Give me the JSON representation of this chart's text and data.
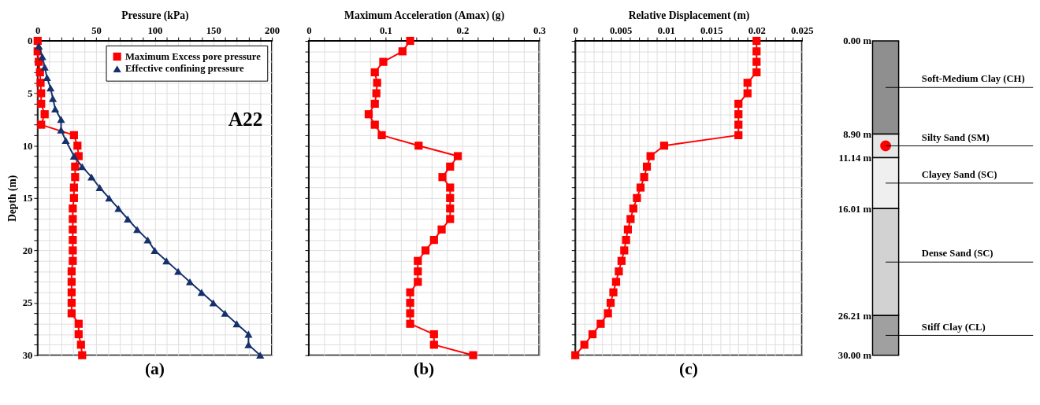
{
  "chart_data": [
    {
      "type": "line",
      "xlabel": "Pressure (kPa)",
      "ylabel": "Depth (m)",
      "xlim": [
        0,
        200
      ],
      "ylim": [
        30,
        0
      ],
      "xticks": [
        0,
        {
          "value": 10,
          "label": null
        },
        {
          "value": 20,
          "label": null
        },
        {
          "value": 30,
          "label": null
        },
        {
          "value": 40,
          "label": null
        },
        50,
        {
          "value": 60,
          "label": null
        },
        {
          "value": 70,
          "label": null
        },
        {
          "value": 80,
          "label": null
        },
        {
          "value": 90,
          "label": null
        },
        100,
        {
          "value": 110,
          "label": null
        },
        {
          "value": 120,
          "label": null
        },
        {
          "value": 130,
          "label": null
        },
        {
          "value": 140,
          "label": null
        },
        150,
        {
          "value": 160,
          "label": null
        },
        {
          "value": 170,
          "label": null
        },
        {
          "value": 180,
          "label": null
        },
        {
          "value": 190,
          "label": null
        },
        200
      ],
      "yticks": [
        0,
        {
          "value": 1,
          "label": null
        },
        {
          "value": 2,
          "label": null
        },
        {
          "value": 3,
          "label": null
        },
        {
          "value": 4,
          "label": null
        },
        5,
        {
          "value": 6,
          "label": null
        },
        {
          "value": 7,
          "label": null
        },
        {
          "value": 8,
          "label": null
        },
        {
          "value": 9,
          "label": null
        },
        10,
        {
          "value": 11,
          "label": null
        },
        {
          "value": 12,
          "label": null
        },
        {
          "value": 13,
          "label": null
        },
        {
          "value": 14,
          "label": null
        },
        15,
        {
          "value": 16,
          "label": null
        },
        {
          "value": 17,
          "label": null
        },
        {
          "value": 18,
          "label": null
        },
        {
          "value": 19,
          "label": null
        },
        20,
        {
          "value": 21,
          "label": null
        },
        {
          "value": 22,
          "label": null
        },
        {
          "value": 23,
          "label": null
        },
        {
          "value": 24,
          "label": null
        },
        25,
        {
          "value": 26,
          "label": null
        },
        {
          "value": 27,
          "label": null
        },
        {
          "value": 28,
          "label": null
        },
        {
          "value": 29,
          "label": null
        },
        30
      ],
      "grid": true,
      "legend": "top right",
      "annotations": [
        "A22",
        "(a)"
      ],
      "series": [
        {
          "name": "Maximum Excess pore pressure",
          "color": "#ff0000",
          "marker": "square",
          "x": [
            0,
            0,
            1,
            2,
            2.5,
            3,
            3,
            6,
            3,
            31,
            34,
            35,
            32,
            32,
            31,
            31,
            30,
            30,
            30,
            30,
            30,
            30,
            29,
            29,
            29,
            29,
            29,
            35,
            35,
            37,
            38
          ],
          "values": [
            0,
            1,
            2,
            3,
            4,
            5,
            6,
            7,
            8,
            9,
            10,
            11,
            12,
            13,
            14,
            15,
            16,
            17,
            18,
            19,
            20,
            21,
            22,
            23,
            24,
            25,
            26,
            27,
            28,
            29,
            30
          ]
        },
        {
          "name": "Effective confining pressure",
          "color": "#15306b",
          "marker": "triangle",
          "x": [
            1,
            4,
            6,
            8,
            11,
            13,
            15,
            20,
            20,
            24,
            31,
            38,
            46,
            53,
            61,
            69,
            77,
            85,
            94,
            100,
            110,
            120,
            130,
            140,
            150,
            160,
            170,
            180,
            180,
            190
          ],
          "values": [
            0.5,
            1.5,
            2.5,
            3.5,
            4.5,
            5.5,
            6.5,
            7.5,
            8.5,
            9.5,
            11,
            12,
            13,
            14,
            15,
            16,
            17,
            18,
            19,
            20,
            21,
            22,
            23,
            24,
            25,
            26,
            27,
            28,
            29,
            30
          ]
        }
      ]
    },
    {
      "type": "line",
      "xlabel": "Maximum Acceleration (Amax) (g)",
      "xlim": [
        0,
        0.3
      ],
      "ylim": [
        30,
        0
      ],
      "tick_labels": "x",
      "xticks": [
        0,
        {
          "value": 0.02,
          "label": null
        },
        {
          "value": 0.04,
          "label": null
        },
        {
          "value": 0.06,
          "label": null
        },
        {
          "value": 0.08,
          "label": null
        },
        0.1,
        {
          "value": 0.12,
          "label": null
        },
        {
          "value": 0.14,
          "label": null
        },
        {
          "value": 0.16,
          "label": null
        },
        {
          "value": 0.18,
          "label": null
        },
        0.2,
        {
          "value": 0.22,
          "label": null
        },
        {
          "value": 0.24,
          "label": null
        },
        {
          "value": 0.26,
          "label": null
        },
        {
          "value": 0.28,
          "label": null
        },
        0.3
      ],
      "yticks": [
        0,
        {
          "value": 1,
          "label": null
        },
        {
          "value": 2,
          "label": null
        },
        {
          "value": 3,
          "label": null
        },
        {
          "value": 4,
          "label": null
        },
        5,
        {
          "value": 6,
          "label": null
        },
        {
          "value": 7,
          "label": null
        },
        {
          "value": 8,
          "label": null
        },
        {
          "value": 9,
          "label": null
        },
        10,
        {
          "value": 11,
          "label": null
        },
        {
          "value": 12,
          "label": null
        },
        {
          "value": 13,
          "label": null
        },
        {
          "value": 14,
          "label": null
        },
        15,
        {
          "value": 16,
          "label": null
        },
        {
          "value": 17,
          "label": null
        },
        {
          "value": 18,
          "label": null
        },
        {
          "value": 19,
          "label": null
        },
        20,
        {
          "value": 21,
          "label": null
        },
        {
          "value": 22,
          "label": null
        },
        {
          "value": 23,
          "label": null
        },
        {
          "value": 24,
          "label": null
        },
        25,
        {
          "value": 26,
          "label": null
        },
        {
          "value": 27,
          "label": null
        },
        {
          "value": 28,
          "label": null
        },
        {
          "value": 29,
          "label": null
        },
        30
      ],
      "grid": true,
      "annotations": [
        "(b)"
      ],
      "series": [
        {
          "color": "#ff0000",
          "marker": "square",
          "x": [
            0.132,
            0.122,
            0.097,
            0.086,
            0.089,
            0.088,
            0.086,
            0.078,
            0.086,
            0.095,
            0.143,
            0.194,
            0.184,
            0.174,
            0.184,
            0.184,
            0.184,
            0.184,
            0.173,
            0.163,
            0.152,
            0.142,
            0.142,
            0.142,
            0.132,
            0.132,
            0.132,
            0.132,
            0.163,
            0.163,
            0.214
          ],
          "values": [
            0,
            1,
            2,
            3,
            4,
            5,
            6,
            7,
            8,
            9,
            10,
            11,
            12,
            13,
            14,
            15,
            16,
            17,
            18,
            19,
            20,
            21,
            22,
            23,
            24,
            25,
            26,
            27,
            28,
            29,
            30
          ]
        }
      ]
    },
    {
      "type": "line",
      "xlabel": "Relative Displacement (m)",
      "xlim": [
        0,
        0.025
      ],
      "ylim": [
        30,
        0
      ],
      "tick_labels": "x",
      "xticks": [
        0,
        {
          "value": 0.001,
          "label": null
        },
        {
          "value": 0.002,
          "label": null
        },
        {
          "value": 0.003,
          "label": null
        },
        {
          "value": 0.004,
          "label": null
        },
        0.005,
        {
          "value": 0.006,
          "label": null
        },
        {
          "value": 0.007,
          "label": null
        },
        {
          "value": 0.008,
          "label": null
        },
        {
          "value": 0.009,
          "label": null
        },
        0.01,
        {
          "value": 0.011,
          "label": null
        },
        {
          "value": 0.012,
          "label": null
        },
        {
          "value": 0.013,
          "label": null
        },
        {
          "value": 0.014,
          "label": null
        },
        0.015,
        {
          "value": 0.016,
          "label": null
        },
        {
          "value": 0.017,
          "label": null
        },
        {
          "value": 0.018,
          "label": null
        },
        {
          "value": 0.019,
          "label": null
        },
        0.02,
        {
          "value": 0.021,
          "label": null
        },
        {
          "value": 0.022,
          "label": null
        },
        {
          "value": 0.023,
          "label": null
        },
        {
          "value": 0.024,
          "label": null
        },
        0.025
      ],
      "yticks": [
        0,
        {
          "value": 1,
          "label": null
        },
        {
          "value": 2,
          "label": null
        },
        {
          "value": 3,
          "label": null
        },
        {
          "value": 4,
          "label": null
        },
        5,
        {
          "value": 6,
          "label": null
        },
        {
          "value": 7,
          "label": null
        },
        {
          "value": 8,
          "label": null
        },
        {
          "value": 9,
          "label": null
        },
        10,
        {
          "value": 11,
          "label": null
        },
        {
          "value": 12,
          "label": null
        },
        {
          "value": 13,
          "label": null
        },
        {
          "value": 14,
          "label": null
        },
        15,
        {
          "value": 16,
          "label": null
        },
        {
          "value": 17,
          "label": null
        },
        {
          "value": 18,
          "label": null
        },
        {
          "value": 19,
          "label": null
        },
        20,
        {
          "value": 21,
          "label": null
        },
        {
          "value": 22,
          "label": null
        },
        {
          "value": 23,
          "label": null
        },
        {
          "value": 24,
          "label": null
        },
        25,
        {
          "value": 26,
          "label": null
        },
        {
          "value": 27,
          "label": null
        },
        {
          "value": 28,
          "label": null
        },
        {
          "value": 29,
          "label": null
        },
        30
      ],
      "grid": true,
      "annotations": [
        "(c)"
      ],
      "series": [
        {
          "color": "#ff0000",
          "marker": "square",
          "x": [
            0.02,
            0.02,
            0.02,
            0.02,
            0.019,
            0.019,
            0.018,
            0.018,
            0.018,
            0.018,
            0.0098,
            0.0083,
            0.0079,
            0.0076,
            0.0072,
            0.0068,
            0.0064,
            0.0061,
            0.0058,
            0.0056,
            0.0054,
            0.0051,
            0.0048,
            0.0045,
            0.0042,
            0.0039,
            0.0036,
            0.0028,
            0.0019,
            0.001,
            0
          ],
          "values": [
            0,
            1,
            2,
            3,
            4,
            5,
            6,
            7,
            8,
            9,
            10,
            11,
            12,
            13,
            14,
            15,
            16,
            17,
            18,
            19,
            20,
            21,
            22,
            23,
            24,
            25,
            26,
            27,
            28,
            29,
            30
          ]
        }
      ]
    },
    {
      "type": "bar",
      "stacked": true,
      "categories": [
        null
      ],
      "ylim": [
        30,
        0
      ],
      "tick_labels": "y",
      "yticks": [
        {
          "value": 0,
          "label": "0.00 m"
        },
        {
          "value": 8.9,
          "label": "8.90 m"
        },
        {
          "value": 11.14,
          "label": "11.14 m"
        },
        {
          "value": 16.01,
          "label": "16.01 m"
        },
        {
          "value": 26.21,
          "label": "26.21 m"
        },
        {
          "value": 30,
          "label": "30.00 m"
        }
      ],
      "series": [
        {
          "name": "Soft-Medium Clay (CH)",
          "color": "#8f8f8f",
          "values": [
            8.9
          ]
        },
        {
          "name": "Silty Sand (SM)",
          "color": "#e6e6e6",
          "values": [
            2.24
          ]
        },
        {
          "name": "Clayey Sand (SC)",
          "color": "#efefef",
          "values": [
            4.87
          ]
        },
        {
          "name": "Dense Sand (SC)",
          "color": "#d2d2d2",
          "values": [
            10.2
          ]
        },
        {
          "name": "Stiff Clay (CL)",
          "color": "#a0a0a0",
          "values": [
            3.79
          ]
        }
      ]
    }
  ]
}
